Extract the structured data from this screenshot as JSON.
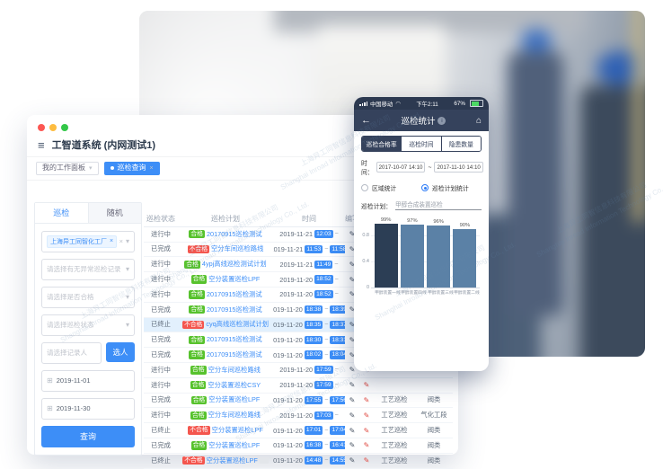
{
  "icons": {
    "menu": "≡",
    "caret": "▾",
    "clear": "×",
    "calendar": "⊞",
    "pencil": "✎",
    "back": "←",
    "home": "⌂",
    "info": "i",
    "wifi": "◠",
    "tilde": "~",
    "dot": "•"
  },
  "watermark": {
    "cn": "上海异工同智信息科技有限公司",
    "en": "Shanghai Inroad Information Technology Co., Ltd."
  },
  "window": {
    "title": "工智道系统 (内网测试1)",
    "tagbar": {
      "panel_tag": "我的工作面板",
      "active_tag": "巡检查询"
    },
    "sidebar": {
      "tabs": [
        {
          "label": "巡检",
          "active": true
        },
        {
          "label": "随机",
          "active": false
        }
      ],
      "factory_tag": "上海异工同智化工厂",
      "filters": [
        "请选择有无异常巡检记录",
        "请选择是否合格",
        "请选择巡检状态"
      ],
      "recorder_placeholder": "请选择记录人",
      "pick_person_label": "选人",
      "date_from": "2019-11-01",
      "date_to": "2019-11-30",
      "search_label": "查询"
    },
    "table": {
      "headers": [
        "巡检状态",
        "巡检计划",
        "时间",
        "编写",
        "",
        "",
        ""
      ],
      "rows": [
        {
          "status": "进行中",
          "badge": "合格",
          "plan": "20170915巡检测试",
          "date": "2019-11-21",
          "start": "12:03",
          "end": "",
          "type": "",
          "cat": "",
          "highlight": false,
          "suffix": false
        },
        {
          "status": "已完成",
          "badge": "不合格",
          "plan": "空分车间巡检路线",
          "date": "2019-11-21",
          "start": "11:53",
          "end": "11:58",
          "type": "",
          "cat": "",
          "highlight": false,
          "suffix": false
        },
        {
          "status": "进行中",
          "badge": "合格",
          "plan": "4ypj高线巡检测试计划",
          "date": "2019-11-21",
          "start": "11:49",
          "end": "",
          "type": "",
          "cat": "",
          "highlight": false,
          "suffix": false
        },
        {
          "status": "进行中",
          "badge": "合格",
          "plan": "空分装置巡检LPF",
          "date": "2019-11-20",
          "start": "18:52",
          "end": "",
          "type": "",
          "cat": "",
          "highlight": false,
          "suffix": false
        },
        {
          "status": "进行中",
          "badge": "合格",
          "plan": "20170915巡检测试",
          "date": "2019-11-20",
          "start": "18:52",
          "end": "",
          "type": "",
          "cat": "",
          "highlight": false,
          "suffix": false
        },
        {
          "status": "已完成",
          "badge": "合格",
          "plan": "20170915巡检测试",
          "date": "2019-11-20",
          "start": "18:38",
          "end": "18:39",
          "type": "",
          "cat": "",
          "highlight": false,
          "suffix": false
        },
        {
          "status": "已终止",
          "badge": "不合格",
          "plan": "cyq高线巡检测试计划",
          "date": "2019-11-20",
          "start": "18:35",
          "end": "18:37",
          "type": "",
          "cat": "",
          "highlight": true,
          "suffix": false
        },
        {
          "status": "已完成",
          "badge": "合格",
          "plan": "20170915巡检测试",
          "date": "2019-11-20",
          "start": "18:30",
          "end": "18:31",
          "type": "",
          "cat": "",
          "highlight": false,
          "suffix": false
        },
        {
          "status": "已完成",
          "badge": "合格",
          "plan": "20170915巡检测试",
          "date": "2019-11-20",
          "start": "18:02",
          "end": "18:04",
          "type": "",
          "cat": "",
          "highlight": false,
          "suffix": false
        },
        {
          "status": "进行中",
          "badge": "合格",
          "plan": "空分车间巡检路线",
          "date": "2019-11-20",
          "start": "17:59",
          "end": "",
          "type": "",
          "cat": "",
          "highlight": false,
          "suffix": false
        },
        {
          "status": "进行中",
          "badge": "合格",
          "plan": "空分装置巡检CSY",
          "date": "2019-11-20",
          "start": "17:59",
          "end": "",
          "type": "",
          "cat": "",
          "highlight": false,
          "suffix": false
        },
        {
          "status": "已完成",
          "badge": "合格",
          "plan": "空分装置巡检LPF",
          "date": "2019-11-20",
          "start": "17:55",
          "end": "17:56",
          "type": "工艺巡检",
          "cat": "阀类",
          "highlight": false,
          "suffix": false
        },
        {
          "status": "进行中",
          "badge": "合格",
          "plan": "空分车间巡检路线",
          "date": "2019-11-20",
          "start": "17:03",
          "end": "",
          "type": "工艺巡检",
          "cat": "气化工段",
          "highlight": false,
          "suffix": false
        },
        {
          "status": "已终止",
          "badge": "不合格",
          "plan": "空分装置巡检LPF",
          "date": "2019-11-20",
          "start": "17:01",
          "end": "17:04",
          "type": "工艺巡检",
          "cat": "阀类",
          "highlight": false,
          "suffix": false
        },
        {
          "status": "已完成",
          "badge": "合格",
          "plan": "空分装置巡检LPF",
          "date": "2019-11-20",
          "start": "16:38",
          "end": "16:41",
          "type": "工艺巡检",
          "cat": "阀类",
          "highlight": false,
          "suffix": false
        },
        {
          "status": "已终止",
          "badge": "不合格",
          "plan": "空分装置巡检LPF",
          "date": "2019-11-20",
          "start": "14:48",
          "end": "14:55",
          "type": "工艺巡检",
          "cat": "阀类",
          "highlight": false,
          "suffix": true
        }
      ]
    }
  },
  "phone": {
    "status_bar": {
      "carrier": "中国移动",
      "time": "下午2:11",
      "battery": "67%"
    },
    "nav": {
      "title": "巡检统计"
    },
    "tabs": [
      {
        "label": "巡检合格率",
        "active": true
      },
      {
        "label": "巡检时间",
        "active": false
      },
      {
        "label": "隐患数量",
        "active": false
      }
    ],
    "time_label": "时间：",
    "date_from": "2017-10-07 14:10",
    "date_separator": "~",
    "date_to": "2017-11-10 14:10",
    "radios": [
      {
        "label": "区域统计",
        "selected": false
      },
      {
        "label": "巡检计划统计",
        "selected": true
      }
    ],
    "plan_label": "巡检计划：",
    "plan_value": "甲醇合成装置巡检"
  },
  "chart_data": {
    "type": "bar",
    "title": "",
    "xlabel": "",
    "ylabel": "",
    "categories": [
      "甲醇装置一线",
      "甲醇装置四线",
      "甲醇装置三线",
      "甲醇装置二线"
    ],
    "values": [
      0.99,
      0.97,
      0.96,
      0.9
    ],
    "data_labels": [
      "99%",
      "97%",
      "96%",
      "90%"
    ],
    "ylim": [
      0,
      1.0
    ],
    "yticks": [
      0,
      0.4,
      0.8
    ],
    "grid": true,
    "legend": "none",
    "bar_colors": [
      "#2c3e55",
      "#5b81a6",
      "#5b81a6",
      "#5b81a6"
    ]
  }
}
